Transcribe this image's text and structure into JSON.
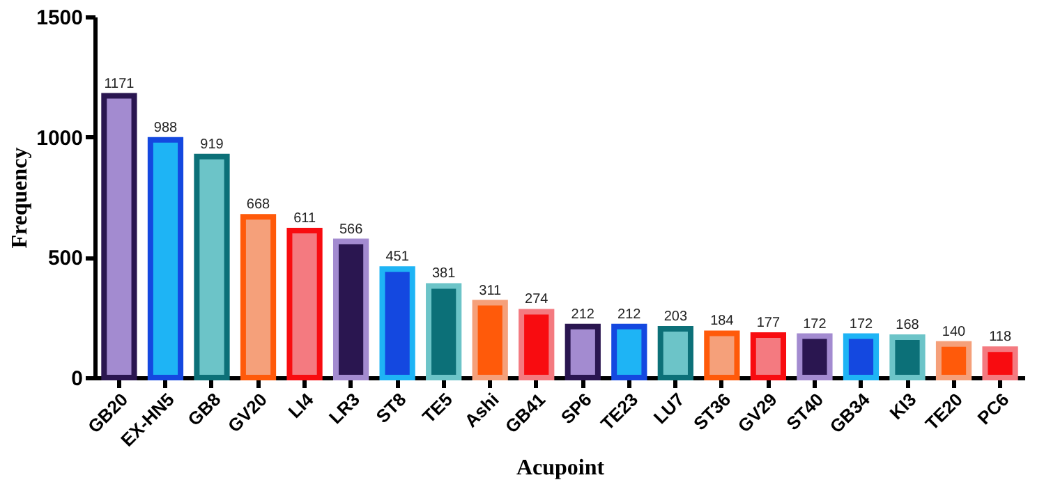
{
  "chart_data": {
    "type": "bar",
    "xlabel": "Acupoint",
    "ylabel": "Frequency",
    "categories": [
      "GB20",
      "EX-HN5",
      "GB8",
      "GV20",
      "LI4",
      "LR3",
      "ST8",
      "TE5",
      "Ashi",
      "GB41",
      "SP6",
      "TE23",
      "LU7",
      "ST36",
      "GV29",
      "ST40",
      "GB34",
      "KI3",
      "TE20",
      "PC6"
    ],
    "values": [
      1171,
      988,
      919,
      668,
      611,
      566,
      451,
      381,
      311,
      274,
      212,
      212,
      203,
      184,
      177,
      172,
      172,
      168,
      140,
      118
    ],
    "colors": [
      "#a38bd0",
      "#1eb4f5",
      "#6cc4c8",
      "#f5a07a",
      "#f47a80",
      "#2a1650",
      "#1448e0",
      "#0c7078",
      "#ff5a0a",
      "#f80c10",
      "#a38bd0",
      "#1eb4f5",
      "#6cc4c8",
      "#f5a07a",
      "#f47a80",
      "#2a1650",
      "#1448e0",
      "#0c7078",
      "#ff5a0a",
      "#f80c10"
    ],
    "ylim": [
      0,
      1500
    ],
    "yticks": [
      0,
      500,
      1000,
      1500
    ],
    "grid": false,
    "data_labels": true
  }
}
